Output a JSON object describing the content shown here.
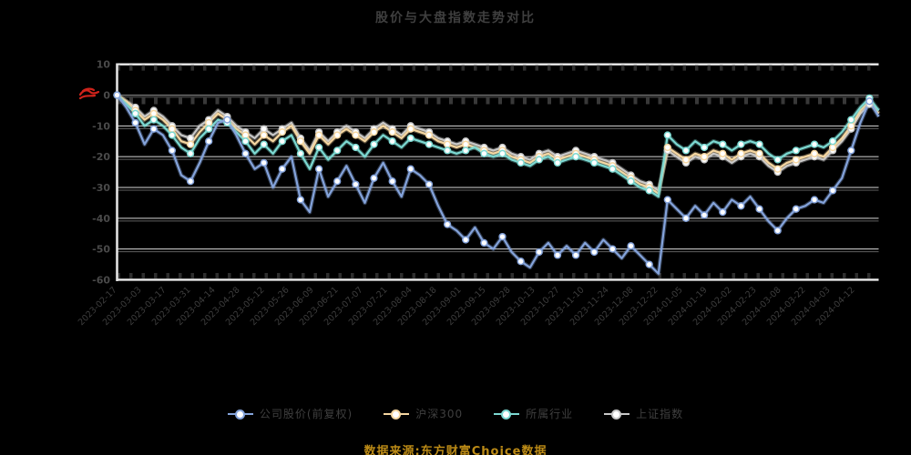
{
  "header": {
    "title": "股价与大盘指数走势对比"
  },
  "annotation": {
    "zero_mark_color": "#d0231b"
  },
  "footer": {
    "source_note": "数据来源:东方财富Choice数据"
  },
  "chart_data": {
    "type": "line",
    "title": "股价与大盘指数走势对比",
    "ylabel": "",
    "xlabel": "",
    "ylim": [
      -60,
      10
    ],
    "grid": true,
    "legend_position": "bottom",
    "y_ticks": [
      10,
      0,
      -10,
      -20,
      -30,
      -40,
      -50,
      -60
    ],
    "x_labels": [
      "2023-02-17",
      "2023-03-03",
      "2023-03-17",
      "2023-03-31",
      "2023-04-14",
      "2023-04-28",
      "2023-05-12",
      "2023-05-26",
      "2023-06-09",
      "2023-06-21",
      "2023-07-07",
      "2023-07-21",
      "2023-08-04",
      "2023-08-18",
      "2023-09-01",
      "2023-09-15",
      "2023-09-28",
      "2023-10-13",
      "2023-10-27",
      "2023-11-10",
      "2023-11-24",
      "2023-12-08",
      "2023-12-22",
      "2024-01-05",
      "2024-01-19",
      "2024-02-02",
      "2024-02-23",
      "2024-03-08",
      "2024-03-22",
      "2024-04-03",
      "2024-04-12"
    ],
    "series": [
      {
        "name": "公司股价(前复权)",
        "color": "#84A3DB",
        "values": [
          0,
          -4,
          -9,
          -16,
          -11,
          -13,
          -18,
          -26,
          -28,
          -22,
          -15,
          -9,
          -8,
          -13,
          -19,
          -24,
          -22,
          -30,
          -24,
          -20,
          -34,
          -38,
          -24,
          -33,
          -28,
          -23,
          -29,
          -35,
          -27,
          -22,
          -28,
          -33,
          -24,
          -26,
          -29,
          -36,
          -42,
          -44,
          -47,
          -43,
          -48,
          -50,
          -46,
          -51,
          -54,
          -56,
          -51,
          -48,
          -52,
          -49,
          -52,
          -48,
          -51,
          -47,
          -50,
          -53,
          -49,
          -52,
          -55,
          -58,
          -34,
          -37,
          -40,
          -36,
          -39,
          -35,
          -38,
          -34,
          -36,
          -33,
          -37,
          -41,
          -44,
          -40,
          -37,
          -36,
          -34,
          -35,
          -31,
          -27,
          -18,
          -9,
          -2,
          -7
        ]
      },
      {
        "name": "沪深300",
        "color": "#F6D7A1",
        "values": [
          0,
          -2,
          -5,
          -8,
          -6,
          -8,
          -11,
          -15,
          -16,
          -12,
          -9,
          -6,
          -8,
          -11,
          -13,
          -16,
          -13,
          -15,
          -12,
          -10,
          -15,
          -19,
          -13,
          -16,
          -13,
          -11,
          -13,
          -15,
          -12,
          -10,
          -12,
          -14,
          -11,
          -12,
          -13,
          -15,
          -16,
          -17,
          -16,
          -17,
          -18,
          -19,
          -18,
          -20,
          -21,
          -22,
          -20,
          -19,
          -21,
          -20,
          -19,
          -20,
          -21,
          -22,
          -23,
          -25,
          -27,
          -29,
          -30,
          -32,
          -17,
          -19,
          -21,
          -19,
          -20,
          -18,
          -19,
          -21,
          -19,
          -18,
          -19,
          -22,
          -24,
          -22,
          -21,
          -20,
          -19,
          -20,
          -17,
          -14,
          -10,
          -5,
          -2,
          -6
        ]
      },
      {
        "name": "所属行业",
        "color": "#7CD9D2",
        "values": [
          0,
          -3,
          -6,
          -10,
          -8,
          -10,
          -13,
          -17,
          -19,
          -14,
          -11,
          -8,
          -9,
          -12,
          -15,
          -19,
          -16,
          -19,
          -15,
          -13,
          -19,
          -24,
          -17,
          -21,
          -18,
          -15,
          -17,
          -20,
          -16,
          -13,
          -15,
          -17,
          -14,
          -15,
          -16,
          -17,
          -18,
          -19,
          -18,
          -17,
          -19,
          -20,
          -19,
          -21,
          -22,
          -23,
          -21,
          -20,
          -22,
          -21,
          -20,
          -21,
          -22,
          -23,
          -24,
          -26,
          -28,
          -30,
          -31,
          -33,
          -13,
          -16,
          -18,
          -15,
          -17,
          -15,
          -16,
          -18,
          -16,
          -15,
          -16,
          -19,
          -21,
          -19,
          -18,
          -17,
          -16,
          -17,
          -15,
          -12,
          -8,
          -4,
          -1,
          -5
        ]
      },
      {
        "name": "上证指数",
        "color": "#C8C8C8",
        "values": [
          0,
          -2,
          -4,
          -7,
          -5,
          -7,
          -10,
          -13,
          -14,
          -10,
          -8,
          -5,
          -7,
          -10,
          -12,
          -14,
          -11,
          -13,
          -11,
          -9,
          -14,
          -18,
          -12,
          -15,
          -12,
          -10,
          -12,
          -14,
          -11,
          -9,
          -11,
          -13,
          -10,
          -11,
          -12,
          -14,
          -15,
          -16,
          -15,
          -16,
          -17,
          -18,
          -17,
          -19,
          -20,
          -21,
          -19,
          -18,
          -20,
          -19,
          -18,
          -19,
          -20,
          -21,
          -22,
          -24,
          -26,
          -28,
          -29,
          -31,
          -18,
          -20,
          -22,
          -20,
          -21,
          -19,
          -20,
          -22,
          -20,
          -19,
          -20,
          -23,
          -25,
          -23,
          -22,
          -21,
          -20,
          -21,
          -18,
          -15,
          -11,
          -6,
          -3,
          -5
        ]
      }
    ]
  }
}
